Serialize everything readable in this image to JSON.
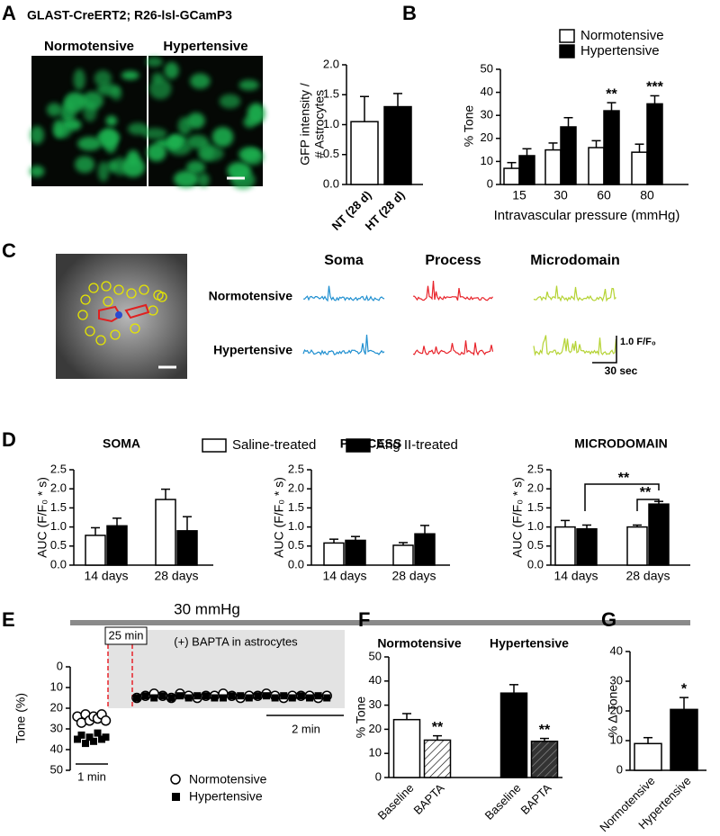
{
  "chart_data": [
    {
      "panel": "A",
      "type": "bar",
      "header": "GLAST-CreERT2; R26-lsl-GCamP3",
      "image_labels": [
        "Normotensive",
        "Hypertensive"
      ],
      "ylabel": [
        "GFP intensity /",
        "# Astrocytes"
      ],
      "categories": [
        "NT (28 d)",
        "HT (28 d)"
      ],
      "values": [
        1.05,
        1.3
      ],
      "errors": [
        0.42,
        0.22
      ],
      "colors": [
        "#ffffff",
        "#000000"
      ],
      "ylim": [
        0,
        2
      ],
      "yticks": [
        {
          "value": 0,
          "label": "0.0"
        },
        0.5,
        {
          "value": 1,
          "label": "1.0"
        },
        1.5,
        {
          "value": 2,
          "label": "2.0"
        }
      ]
    },
    {
      "panel": "B",
      "type": "grouped_bar",
      "ylabel": "% Tone",
      "xlabel": "Intravascular pressure (mmHg)",
      "categories": [
        "15",
        "30",
        "60",
        "80"
      ],
      "legend": "top",
      "series": [
        {
          "name": "Normotensive",
          "color": "#ffffff",
          "values": [
            7,
            15,
            16,
            14
          ],
          "errors": [
            2.5,
            3,
            3,
            3.5
          ]
        },
        {
          "name": "Hypertensive",
          "color": "#000000",
          "values": [
            12.5,
            25,
            32,
            35
          ],
          "errors": [
            3,
            4,
            3.5,
            3.5
          ]
        }
      ],
      "significance": [
        null,
        null,
        "**",
        "***"
      ],
      "ylim": [
        0,
        50
      ],
      "yticks": [
        0,
        10,
        20,
        30,
        40,
        50
      ]
    },
    {
      "panel": "C",
      "type": "traces",
      "columns": [
        "Soma",
        "Process",
        "Microdomain"
      ],
      "rows": [
        "Normotensive",
        "Hypertensive"
      ],
      "colors": [
        "#1f8fd0",
        "#e8232a",
        "#b5d334"
      ],
      "scale_y": "1.0 F/F₀",
      "scale_x": "30 sec"
    },
    {
      "panel": "D",
      "type": "grouped_bar",
      "title": "SOMA",
      "ylabel": "AUC (F/F₀ * s)",
      "categories": [
        "14 days",
        "28 days"
      ],
      "legend": "top",
      "series": [
        {
          "name": "Saline-treated",
          "color": "#ffffff",
          "values": [
            0.78,
            1.72
          ],
          "errors": [
            0.2,
            0.27
          ]
        },
        {
          "name": "Ang II-treated",
          "color": "#000000",
          "values": [
            1.03,
            0.9
          ],
          "errors": [
            0.2,
            0.37
          ]
        }
      ],
      "ylim": [
        0,
        2.5
      ],
      "yticks": [
        {
          "value": 0,
          "label": "0.0"
        },
        0.5,
        {
          "value": 1,
          "label": "1.0"
        },
        1.5,
        {
          "value": 2,
          "label": "2.0"
        },
        2.5
      ]
    },
    {
      "type": "grouped_bar",
      "title": "PROCESS",
      "ylabel": "AUC (F/F₀ * s)",
      "categories": [
        "14 days",
        "28 days"
      ],
      "series": [
        {
          "color": "#ffffff",
          "values": [
            0.58,
            0.52
          ],
          "errors": [
            0.1,
            0.07
          ]
        },
        {
          "color": "#000000",
          "values": [
            0.65,
            0.82
          ],
          "errors": [
            0.1,
            0.22
          ]
        }
      ],
      "ylim": [
        0,
        2.5
      ],
      "yticks": [
        {
          "value": 0,
          "label": "0.0"
        },
        0.5,
        {
          "value": 1,
          "label": "1.0"
        },
        1.5,
        {
          "value": 2,
          "label": "2.0"
        },
        2.5
      ]
    },
    {
      "type": "grouped_bar",
      "title": "MICRODOMAIN",
      "ylabel": "AUC (F/F₀ * s)",
      "categories": [
        "14 days",
        "28 days"
      ],
      "series": [
        {
          "color": "#ffffff",
          "values": [
            1.0,
            1.0
          ],
          "errors": [
            0.17,
            0.05
          ]
        },
        {
          "color": "#000000",
          "values": [
            0.95,
            1.6
          ],
          "errors": [
            0.1,
            0.07
          ]
        }
      ],
      "brackets": [
        "**",
        "**"
      ],
      "ylim": [
        0,
        2.5
      ],
      "yticks": [
        {
          "value": 0,
          "label": "0.0"
        },
        0.5,
        {
          "value": 1,
          "label": "1.0"
        },
        1.5,
        {
          "value": 2,
          "label": "2.0"
        },
        2.5
      ]
    },
    {
      "panel": "E",
      "type": "timecourse",
      "title": "30 mmHg",
      "annotations": [
        "25 min",
        "(+) BAPTA in astrocytes"
      ],
      "scalebars": [
        "2 min",
        "1 min"
      ],
      "ylabel": "Tone (%)",
      "ylim": [
        0,
        50
      ],
      "invert_y": true,
      "yticks": [
        0,
        10,
        20,
        30,
        40,
        50
      ],
      "series": [
        {
          "name": "Normotensive",
          "marker": "circle",
          "baseline": [
            24,
            27,
            23,
            26,
            24,
            25,
            23,
            26
          ],
          "treatment": [
            15,
            14,
            13,
            14,
            15,
            13,
            14,
            15,
            14,
            14,
            13,
            14,
            15,
            14,
            14,
            13,
            14,
            15,
            14,
            14,
            14,
            15,
            14
          ]
        },
        {
          "name": "Hypertensive",
          "marker": "square",
          "baseline": [
            35,
            33,
            37,
            34,
            36,
            32,
            35,
            34
          ],
          "treatment": [
            15,
            14,
            15,
            14,
            15,
            14,
            15,
            14,
            14,
            15,
            15,
            14,
            14,
            15,
            14,
            14,
            15,
            14,
            15,
            14,
            15,
            14,
            15
          ]
        }
      ]
    },
    {
      "panel": "F",
      "type": "bar",
      "groups": [
        "Normotensive",
        "Hypertensive"
      ],
      "ylabel": "% Tone",
      "categories": [
        "Baseline",
        "BAPTA",
        "Baseline",
        "BAPTA"
      ],
      "values": [
        24,
        15.5,
        35,
        15
      ],
      "errors": [
        2.5,
        1.8,
        3.5,
        1.2
      ],
      "colors": [
        "#ffffff",
        "#ffffff",
        "#000000",
        "#000000"
      ],
      "hatched": [
        false,
        true,
        false,
        true
      ],
      "significance": [
        null,
        "**",
        null,
        "**"
      ],
      "ylim": [
        0,
        50
      ],
      "yticks": [
        0,
        10,
        20,
        30,
        40,
        50
      ]
    },
    {
      "panel": "G",
      "type": "bar",
      "ylabel": "% Δ Tone",
      "categories": [
        "Normotensive",
        "Hypertensive"
      ],
      "values": [
        9,
        20.5
      ],
      "errors": [
        2,
        4
      ],
      "colors": [
        "#ffffff",
        "#000000"
      ],
      "significance": [
        null,
        "*"
      ],
      "ylim": [
        0,
        40
      ],
      "yticks": [
        0,
        10,
        20,
        30,
        40
      ]
    }
  ]
}
